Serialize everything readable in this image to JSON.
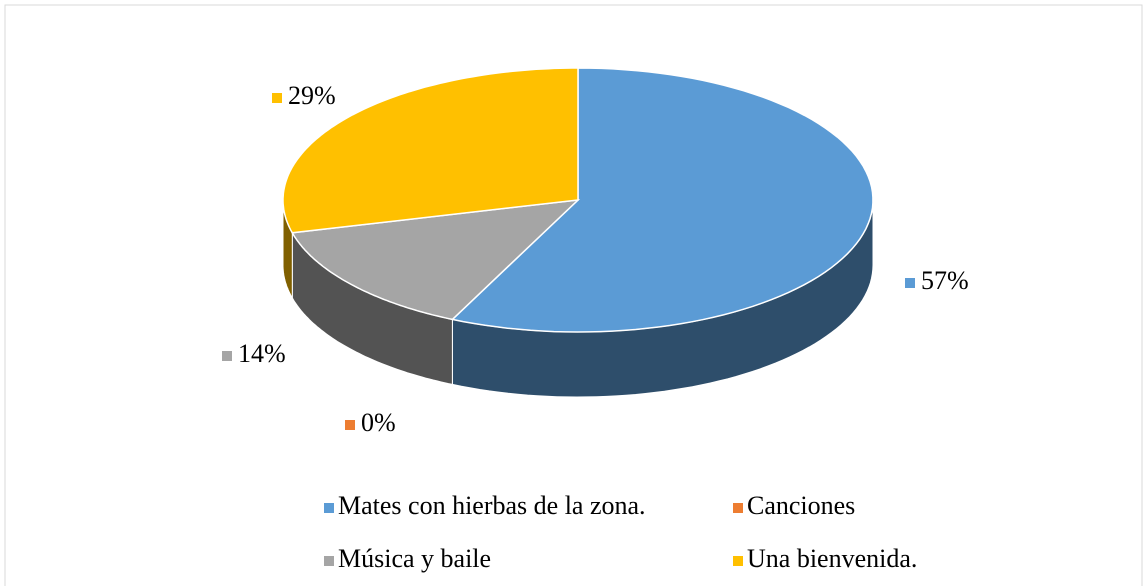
{
  "chart_data": {
    "type": "pie3d",
    "categories": [
      "Mates con hierbas de la zona.",
      "Canciones",
      "Música y baile",
      "Una bienvenida."
    ],
    "values": [
      57,
      0,
      14,
      29
    ],
    "value_labels": [
      "57%",
      "0%",
      "14%",
      "29%"
    ],
    "colors": [
      "#5b9bd5",
      "#ed7d31",
      "#a5a5a5",
      "#ffc000"
    ],
    "legend": "bottom"
  }
}
